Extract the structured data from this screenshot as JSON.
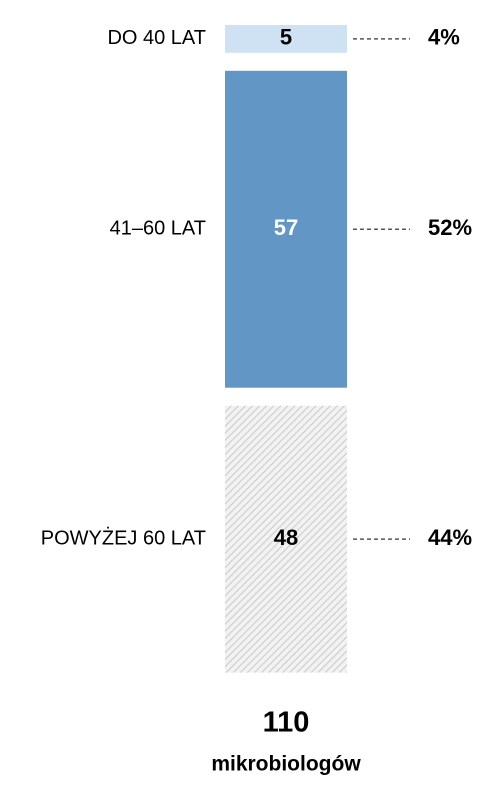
{
  "chart_data": {
    "type": "stacked-column",
    "categories": [
      "DO 40 LAT",
      "41–60 LAT",
      "POWYŻEJ 60 LAT"
    ],
    "values": [
      5,
      57,
      48
    ],
    "colors": [
      "#cfe2f3",
      "#6196c5",
      "#c9c9c9"
    ],
    "hatched": [
      false,
      false,
      true
    ],
    "shares": {
      "values": [
        4,
        52,
        44
      ],
      "value_labels": [
        "4%",
        "52%",
        "44%"
      ]
    },
    "total": 110,
    "total_label": "mikrobiologów"
  }
}
